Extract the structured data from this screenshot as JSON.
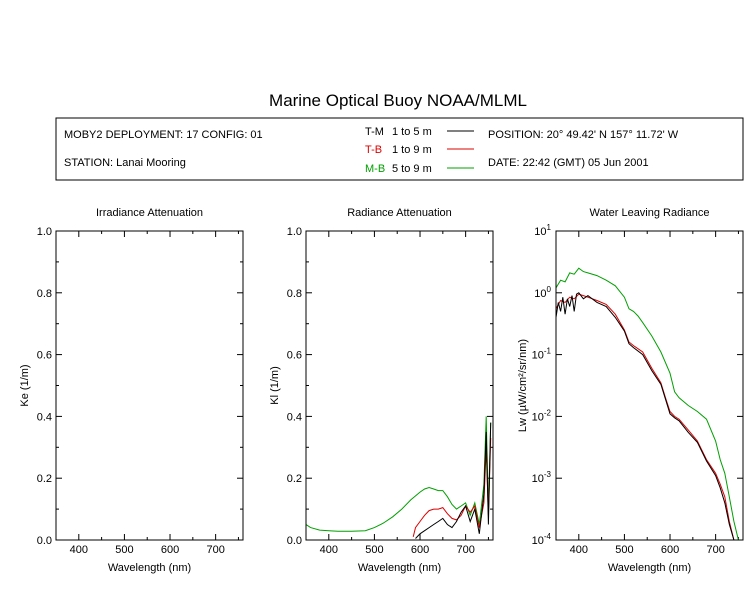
{
  "title": "Marine Optical Buoy NOAA/MLML",
  "header": {
    "deployment": "MOBY2 DEPLOYMENT: 17 CONFIG: 01",
    "station": "STATION: Lanai Mooring",
    "position": "POSITION: 20° 49.42' N   157° 11.72' W",
    "date": "DATE: 22:42 (GMT) 05 Jun 2001"
  },
  "legend": [
    {
      "code": "T-M",
      "range": "1 to 5  m",
      "color": "#000000"
    },
    {
      "code": "T-B",
      "range": "1 to 9  m",
      "color": "#dd0000"
    },
    {
      "code": "M-B",
      "range": "5 to 9  m",
      "color": "#00a000"
    }
  ],
  "chart_data": [
    {
      "type": "line",
      "title": "Irradiance Attenuation",
      "xlabel": "Wavelength (nm)",
      "ylabel": "Ke  (1/m)",
      "xlim": [
        350,
        760
      ],
      "ylim": [
        0,
        1.0
      ],
      "x_ticks": [
        "400",
        "500",
        "600",
        "700"
      ],
      "y_ticks": [
        "0.0",
        "0.2",
        "0.4",
        "0.6",
        "0.8",
        "1.0"
      ],
      "series": []
    },
    {
      "type": "line",
      "title": "Radiance Attenuation",
      "xlabel": "Wavelength (nm)",
      "ylabel": "Kl  (1/m)",
      "xlim": [
        350,
        760
      ],
      "ylim": [
        0,
        1.0
      ],
      "x_ticks": [
        "400",
        "500",
        "600",
        "700"
      ],
      "y_ticks": [
        "0.0",
        "0.2",
        "0.4",
        "0.6",
        "0.8",
        "1.0"
      ],
      "series": [
        {
          "name": "M-B",
          "color": "#00a000",
          "x": [
            350,
            360,
            380,
            400,
            420,
            450,
            480,
            500,
            520,
            540,
            560,
            580,
            600,
            610,
            620,
            630,
            640,
            650,
            660,
            670,
            680,
            690,
            700,
            710,
            720,
            730,
            740,
            745,
            750,
            755
          ],
          "y": [
            0.05,
            0.04,
            0.032,
            0.03,
            0.028,
            0.028,
            0.03,
            0.04,
            0.055,
            0.075,
            0.1,
            0.13,
            0.155,
            0.165,
            0.17,
            0.165,
            0.16,
            0.16,
            0.14,
            0.115,
            0.1,
            0.11,
            0.12,
            0.08,
            0.12,
            0.05,
            0.18,
            0.4,
            0.1,
            0.38
          ]
        },
        {
          "name": "T-B",
          "color": "#dd0000",
          "x": [
            585,
            590,
            600,
            610,
            620,
            630,
            640,
            650,
            660,
            670,
            680,
            690,
            700,
            710,
            720,
            730,
            740,
            745,
            750,
            755
          ],
          "y": [
            0.01,
            0.04,
            0.06,
            0.08,
            0.095,
            0.1,
            0.1,
            0.105,
            0.085,
            0.07,
            0.065,
            0.08,
            0.11,
            0.09,
            0.11,
            0.04,
            0.12,
            0.3,
            0.08,
            0.33
          ]
        },
        {
          "name": "T-M",
          "color": "#000000",
          "x": [
            590,
            600,
            610,
            620,
            630,
            640,
            650,
            660,
            665,
            670,
            680,
            690,
            700,
            710,
            720,
            730,
            740,
            745,
            750,
            755
          ],
          "y": [
            0.005,
            0.02,
            0.03,
            0.04,
            0.05,
            0.06,
            0.07,
            0.05,
            0.045,
            0.04,
            0.06,
            0.09,
            0.11,
            0.06,
            0.1,
            0.02,
            0.15,
            0.35,
            0.05,
            0.38
          ]
        }
      ]
    },
    {
      "type": "line",
      "title": "Water Leaving Radiance",
      "xlabel": "Wavelength (nm)",
      "ylabel": "Lw  (µW/cm²/sr/nm)",
      "xlim": [
        350,
        760
      ],
      "ylim": [
        0.0001,
        10
      ],
      "yscale": "log",
      "x_ticks": [
        "400",
        "500",
        "600",
        "700"
      ],
      "y_tick_exponents": [
        "1",
        "0",
        "-1",
        "-2",
        "-3",
        "-4"
      ],
      "series": [
        {
          "name": "M-B",
          "color": "#00a000",
          "x": [
            350,
            360,
            370,
            380,
            390,
            400,
            410,
            420,
            440,
            460,
            480,
            500,
            510,
            520,
            530,
            540,
            560,
            580,
            600,
            610,
            620,
            640,
            660,
            680,
            700,
            710,
            720,
            730,
            740,
            750
          ],
          "y": [
            1.2,
            1.6,
            1.5,
            2.1,
            2.0,
            2.5,
            2.2,
            2.1,
            1.9,
            1.6,
            1.3,
            0.85,
            0.55,
            0.5,
            0.42,
            0.33,
            0.2,
            0.11,
            0.05,
            0.025,
            0.02,
            0.015,
            0.012,
            0.009,
            0.004,
            0.002,
            0.0012,
            0.0005,
            0.0002,
            0.0001
          ]
        },
        {
          "name": "T-B",
          "color": "#dd0000",
          "x": [
            350,
            360,
            370,
            380,
            390,
            400,
            410,
            420,
            440,
            460,
            480,
            500,
            510,
            520,
            540,
            560,
            580,
            590,
            600,
            610,
            620,
            640,
            660,
            680,
            700,
            710,
            720,
            730,
            740,
            750
          ],
          "y": [
            0.55,
            0.75,
            0.7,
            0.85,
            0.8,
            0.95,
            0.9,
            0.85,
            0.75,
            0.65,
            0.45,
            0.25,
            0.16,
            0.14,
            0.11,
            0.06,
            0.035,
            0.02,
            0.012,
            0.01,
            0.009,
            0.006,
            0.004,
            0.002,
            0.0012,
            0.0008,
            0.0005,
            0.0002,
            0.0001,
            0.0001
          ]
        },
        {
          "name": "T-M",
          "color": "#000000",
          "x": [
            350,
            355,
            360,
            365,
            370,
            375,
            380,
            385,
            390,
            395,
            400,
            410,
            420,
            440,
            460,
            480,
            500,
            510,
            520,
            540,
            560,
            580,
            590,
            600,
            610,
            620,
            640,
            660,
            680,
            700,
            710,
            720,
            730,
            740,
            750
          ],
          "y": [
            0.4,
            0.7,
            0.5,
            0.85,
            0.45,
            0.8,
            0.6,
            0.9,
            0.5,
            0.95,
            1.0,
            0.8,
            0.9,
            0.7,
            0.6,
            0.4,
            0.24,
            0.15,
            0.13,
            0.1,
            0.055,
            0.033,
            0.019,
            0.011,
            0.0095,
            0.0085,
            0.0055,
            0.0038,
            0.0019,
            0.0011,
            0.0007,
            0.0004,
            0.00018,
            0.0001,
            0.0001
          ]
        }
      ]
    }
  ]
}
